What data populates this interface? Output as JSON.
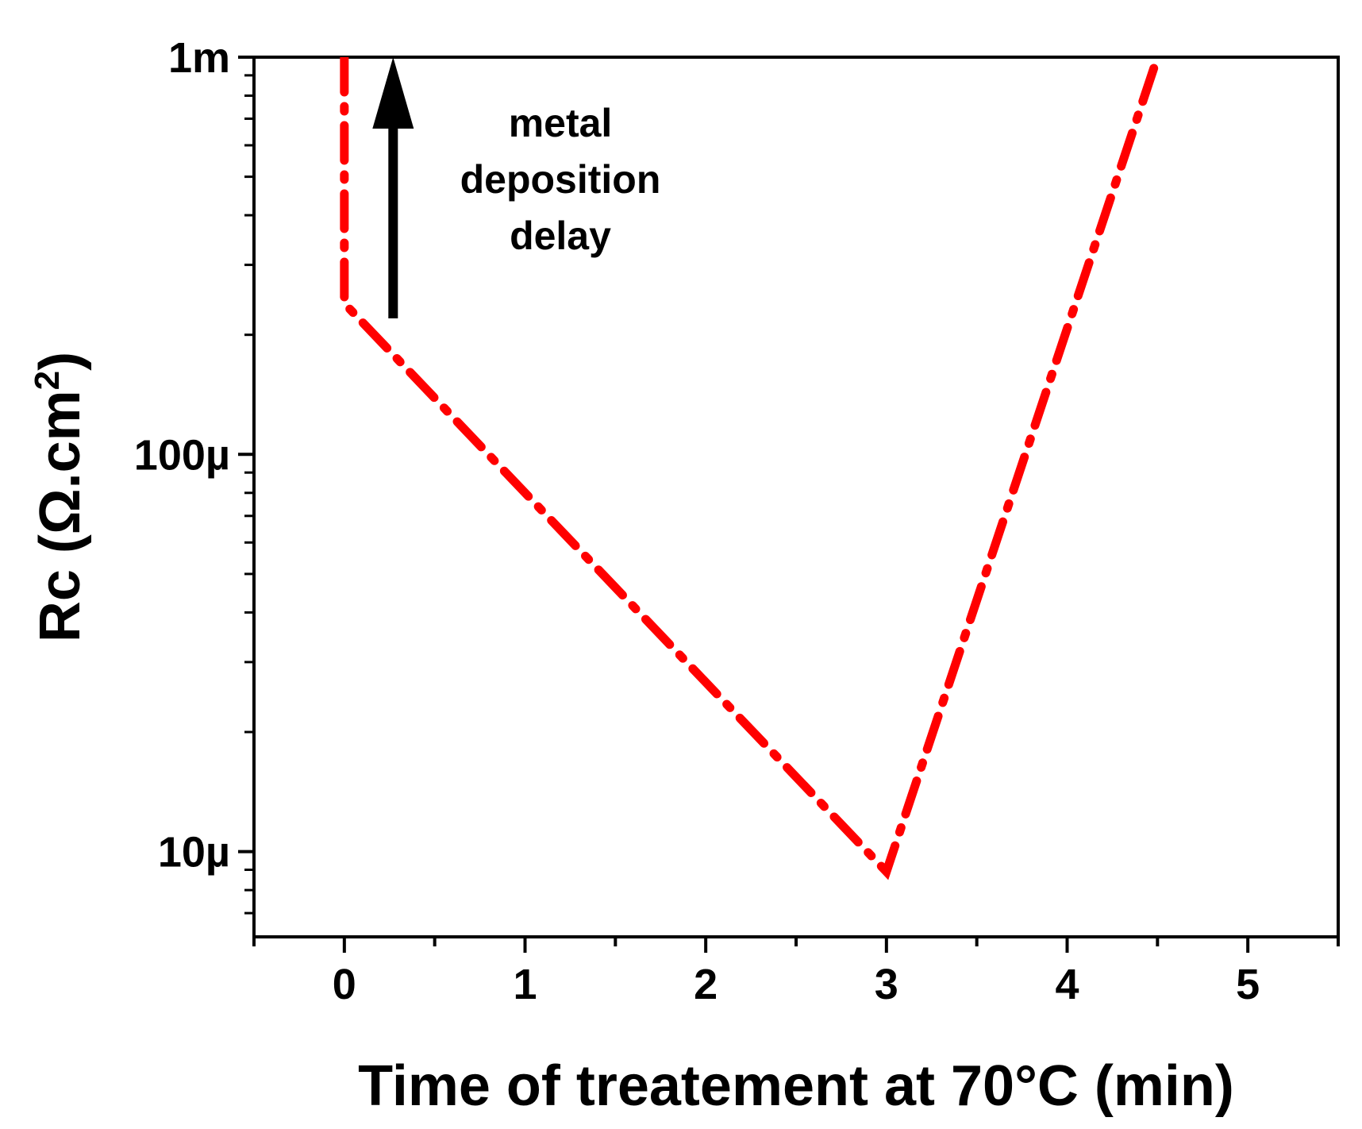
{
  "chart_data": {
    "type": "line",
    "title": "",
    "xlabel": "Time of treatement at 70°C (min)",
    "ylabel_main": "Rc (Ω.cm",
    "ylabel_sup": "2",
    "ylabel_close": ")",
    "xlim": [
      -0.5,
      5.5
    ],
    "ylim": [
      6.1e-06,
      0.001
    ],
    "yscale": "log",
    "xticks": [
      0,
      1,
      2,
      3,
      4,
      5
    ],
    "xtick_labels": [
      "0",
      "1",
      "2",
      "3",
      "4",
      "5"
    ],
    "yticks": [
      1e-05,
      0.0001,
      0.001
    ],
    "ytick_labels": [
      "10µ",
      "100µ",
      "1m"
    ],
    "series": [
      {
        "name": "Rc",
        "style": "dash-dot",
        "color": "#ff0000",
        "x": [
          0,
          0,
          3,
          4.5
        ],
        "y": [
          0.001,
          0.00024,
          8.9e-06,
          0.001
        ]
      }
    ],
    "annotations": {
      "arrow": {
        "x": 0.27,
        "y_from": 0.00022,
        "y_to": 0.001,
        "color": "#000000"
      },
      "text_lines": [
        "metal",
        "deposition",
        "delay"
      ]
    }
  }
}
